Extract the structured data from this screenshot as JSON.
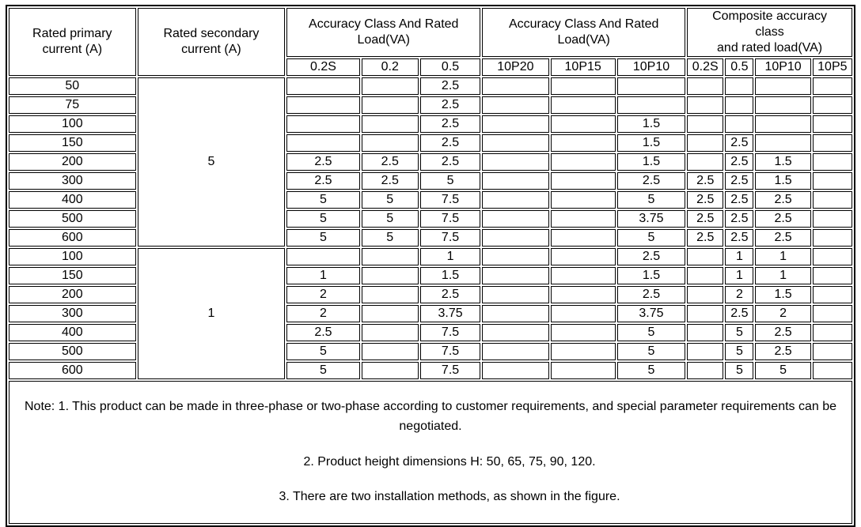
{
  "table": {
    "header": {
      "col_primary": "Rated primary\ncurrent (A)",
      "col_secondary": "Rated secondary\ncurrent (A)",
      "group_accuracy1": "Accuracy Class And Rated\nLoad(VA)",
      "group_accuracy2": "Accuracy Class And Rated\nLoad(VA)",
      "group_composite": "Composite accuracy\nclass\nand rated load(VA)",
      "subcols": [
        "0.2S",
        "0.2",
        "0.5",
        "10P20",
        "10P15",
        "10P10",
        "0.2S",
        "0.5",
        "10P10",
        "10P5"
      ]
    },
    "groups": [
      {
        "secondary_current": "5",
        "rows": [
          {
            "primary": "50",
            "values": [
              "",
              "",
              "2.5",
              "",
              "",
              "",
              "",
              "",
              "",
              ""
            ]
          },
          {
            "primary": "75",
            "values": [
              "",
              "",
              "2.5",
              "",
              "",
              "",
              "",
              "",
              "",
              ""
            ]
          },
          {
            "primary": "100",
            "values": [
              "",
              "",
              "2.5",
              "",
              "",
              "1.5",
              "",
              "",
              "",
              ""
            ]
          },
          {
            "primary": "150",
            "values": [
              "",
              "",
              "2.5",
              "",
              "",
              "1.5",
              "",
              "2.5",
              "",
              ""
            ]
          },
          {
            "primary": "200",
            "values": [
              "2.5",
              "2.5",
              "2.5",
              "",
              "",
              "1.5",
              "",
              "2.5",
              "1.5",
              ""
            ]
          },
          {
            "primary": "300",
            "values": [
              "2.5",
              "2.5",
              "5",
              "",
              "",
              "2.5",
              "2.5",
              "2.5",
              "1.5",
              ""
            ]
          },
          {
            "primary": "400",
            "values": [
              "5",
              "5",
              "7.5",
              "",
              "",
              "5",
              "2.5",
              "2.5",
              "2.5",
              ""
            ]
          },
          {
            "primary": "500",
            "values": [
              "5",
              "5",
              "7.5",
              "",
              "",
              "3.75",
              "2.5",
              "2.5",
              "2.5",
              ""
            ]
          },
          {
            "primary": "600",
            "values": [
              "5",
              "5",
              "7.5",
              "",
              "",
              "5",
              "2.5",
              "2.5",
              "2.5",
              ""
            ]
          }
        ]
      },
      {
        "secondary_current": "1",
        "rows": [
          {
            "primary": "100",
            "values": [
              "",
              "",
              "1",
              "",
              "",
              "2.5",
              "",
              "1",
              "1",
              ""
            ]
          },
          {
            "primary": "150",
            "values": [
              "1",
              "",
              "1.5",
              "",
              "",
              "1.5",
              "",
              "1",
              "1",
              ""
            ]
          },
          {
            "primary": "200",
            "values": [
              "2",
              "",
              "2.5",
              "",
              "",
              "2.5",
              "",
              "2",
              "1.5",
              ""
            ]
          },
          {
            "primary": "300",
            "values": [
              "2",
              "",
              "3.75",
              "",
              "",
              "3.75",
              "",
              "2.5",
              "2",
              ""
            ]
          },
          {
            "primary": "400",
            "values": [
              "2.5",
              "",
              "7.5",
              "",
              "",
              "5",
              "",
              "5",
              "2.5",
              ""
            ]
          },
          {
            "primary": "500",
            "values": [
              "5",
              "",
              "7.5",
              "",
              "",
              "5",
              "",
              "5",
              "2.5",
              ""
            ]
          },
          {
            "primary": "600",
            "values": [
              "5",
              "",
              "7.5",
              "",
              "",
              "5",
              "",
              "5",
              "5",
              ""
            ]
          }
        ]
      }
    ],
    "notes": [
      "Note: 1. This product can be made in three-phase or two-phase according to customer requirements, and special parameter requirements can be negotiated.",
      "2. Product height dimensions H: 50, 65, 75, 90, 120.",
      "3. There are two installation methods, as shown in the figure."
    ]
  }
}
